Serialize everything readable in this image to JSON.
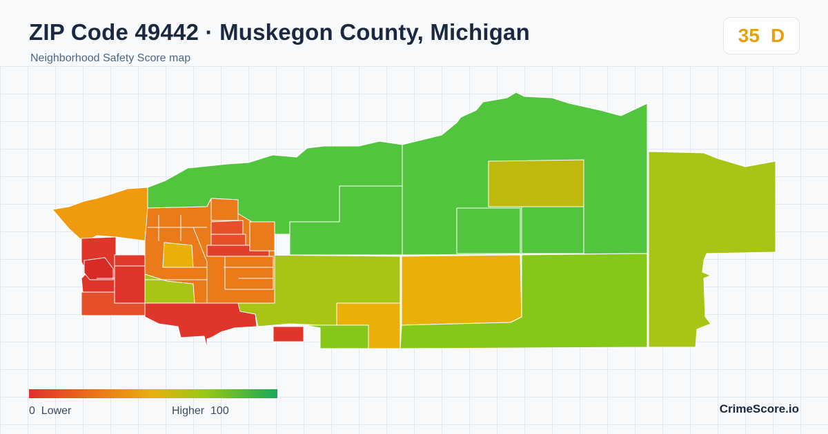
{
  "header": {
    "title": "ZIP Code 49442 · Muskegon County, Michigan",
    "subtitle": "Neighborhood Safety Score map"
  },
  "score": {
    "value": "35",
    "grade": "D",
    "color": "#e8a010"
  },
  "legend": {
    "low_value": "0",
    "low_label": "Lower",
    "high_label": "Higher",
    "high_value": "100",
    "colors": [
      "#e0302a",
      "#ea7d1a",
      "#e6b010",
      "#9cc814",
      "#1aa85a"
    ]
  },
  "brand": "CrimeScore.io",
  "map_regions": [
    {
      "name": "region-north",
      "color": "#53c43e"
    },
    {
      "name": "region-northeast",
      "color": "#53c43e"
    },
    {
      "name": "region-east",
      "color": "#a9c414"
    },
    {
      "name": "region-central-south",
      "color": "#a9c414"
    },
    {
      "name": "region-south-center",
      "color": "#eab00a"
    },
    {
      "name": "region-south-east",
      "color": "#86c81a"
    },
    {
      "name": "region-northeast-inner",
      "color": "#c0b90d"
    },
    {
      "name": "region-west-lakeshore",
      "color": "#f09a10"
    },
    {
      "name": "region-west-downtown",
      "color": "#e55a22"
    },
    {
      "name": "region-southwest",
      "color": "#e0352a"
    }
  ]
}
